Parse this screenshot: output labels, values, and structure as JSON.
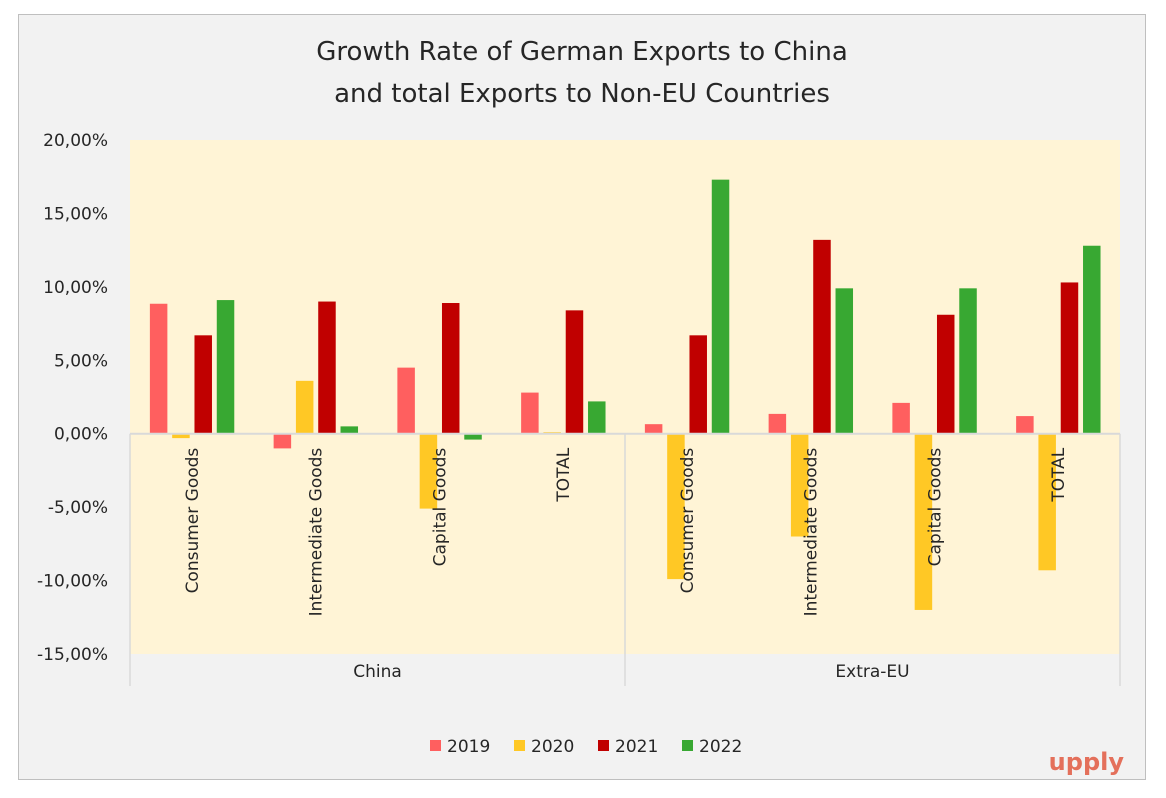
{
  "chart_data": {
    "type": "bar",
    "title": [
      "Growth Rate of German Exports to China",
      "and total Exports to Non-EU Countries"
    ],
    "xlabel": "",
    "ylabel": "",
    "ylim": [
      -15,
      20
    ],
    "y_ticks": [
      "20,00%",
      "15,00%",
      "10,00%",
      "5,00%",
      "0,00%",
      "-5,00%",
      "-10,00%",
      "-15,00%"
    ],
    "y_tick_values": [
      20,
      15,
      10,
      5,
      0,
      -5,
      -10,
      -15
    ],
    "groups": [
      {
        "label": "China",
        "categories": [
          "Consumer Goods",
          "Intermediate Goods",
          "Capital Goods",
          "TOTAL"
        ]
      },
      {
        "label": "Extra-EU",
        "categories": [
          "Consumer Goods",
          "Intermediate Goods",
          "Capital Goods",
          "TOTAL"
        ]
      }
    ],
    "series": [
      {
        "name": "2019",
        "color": "#ff5f5f",
        "values": [
          8.85,
          -1.0,
          4.5,
          2.8,
          0.65,
          1.35,
          2.1,
          1.2
        ]
      },
      {
        "name": "2020",
        "color": "#ffc825",
        "values": [
          -0.3,
          3.6,
          -5.1,
          0.1,
          -9.9,
          -7.0,
          -12.0,
          -9.3
        ]
      },
      {
        "name": "2021",
        "color": "#c00000",
        "values": [
          6.7,
          9.0,
          8.9,
          8.4,
          6.7,
          13.2,
          8.1,
          10.3
        ]
      },
      {
        "name": "2022",
        "color": "#38a832",
        "values": [
          9.1,
          0.5,
          -0.4,
          2.2,
          17.3,
          9.9,
          9.9,
          12.8
        ]
      }
    ],
    "plot_background": "#fff4d6",
    "legend_position": "bottom",
    "grid": false
  },
  "logo": "upply"
}
